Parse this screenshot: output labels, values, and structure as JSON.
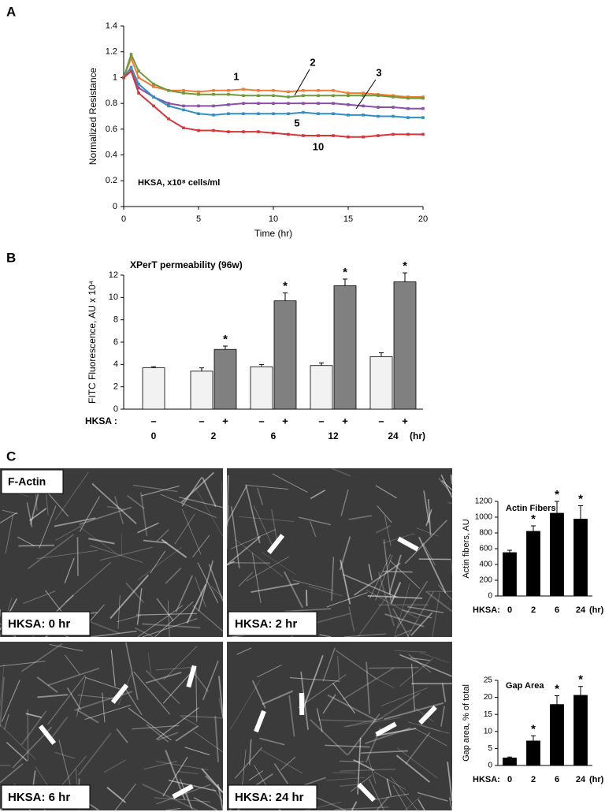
{
  "panel_labels": [
    "A",
    "B",
    "C"
  ],
  "stain_label": "F-Actin",
  "images": [
    {
      "label": "HKSA: 0 hr"
    },
    {
      "label": "HKSA: 2 hr"
    },
    {
      "label": "HKSA: 6 hr"
    },
    {
      "label": "HKSA: 24 hr"
    }
  ],
  "chart_data": [
    {
      "type": "line",
      "xlabel": "Time (hr)",
      "ylabel": "Normalized Resistance",
      "annotation": "HKSA, x10⁸ cells/ml",
      "x": [
        0,
        0.5,
        1,
        2,
        3,
        4,
        5,
        6,
        7,
        8,
        9,
        10,
        11,
        12,
        13,
        14,
        15,
        16,
        17,
        18,
        19,
        20
      ],
      "xlim": [
        0,
        20
      ],
      "xticks": [
        0,
        5,
        10,
        15,
        20
      ],
      "ylim": [
        0,
        1.4
      ],
      "yticks": [
        0,
        0.2,
        0.4,
        0.6,
        0.8,
        1,
        1.2,
        1.4
      ],
      "series": [
        {
          "name": "1",
          "color": "#f07c32",
          "values": [
            1.0,
            1.15,
            1.0,
            0.93,
            0.9,
            0.9,
            0.89,
            0.9,
            0.9,
            0.91,
            0.9,
            0.9,
            0.89,
            0.9,
            0.9,
            0.9,
            0.88,
            0.88,
            0.87,
            0.86,
            0.85,
            0.85
          ]
        },
        {
          "name": "2",
          "color": "#6f9a3c",
          "values": [
            1.0,
            1.18,
            1.05,
            0.95,
            0.9,
            0.88,
            0.87,
            0.87,
            0.87,
            0.86,
            0.86,
            0.86,
            0.85,
            0.86,
            0.86,
            0.86,
            0.86,
            0.86,
            0.86,
            0.85,
            0.84,
            0.84
          ]
        },
        {
          "name": "3",
          "color": "#8a4fa8",
          "values": [
            1.0,
            1.05,
            0.92,
            0.85,
            0.8,
            0.78,
            0.78,
            0.78,
            0.79,
            0.8,
            0.8,
            0.8,
            0.8,
            0.8,
            0.8,
            0.8,
            0.79,
            0.78,
            0.77,
            0.77,
            0.76,
            0.76
          ]
        },
        {
          "name": "5",
          "color": "#2f8fc4",
          "values": [
            1.0,
            1.08,
            0.95,
            0.85,
            0.78,
            0.75,
            0.72,
            0.71,
            0.72,
            0.72,
            0.72,
            0.72,
            0.72,
            0.73,
            0.72,
            0.72,
            0.71,
            0.71,
            0.7,
            0.7,
            0.69,
            0.69
          ]
        },
        {
          "name": "10",
          "color": "#d8343a",
          "values": [
            1.0,
            1.05,
            0.88,
            0.78,
            0.68,
            0.61,
            0.59,
            0.59,
            0.58,
            0.58,
            0.58,
            0.57,
            0.56,
            0.55,
            0.55,
            0.55,
            0.54,
            0.54,
            0.55,
            0.56,
            0.56,
            0.56
          ]
        }
      ]
    },
    {
      "type": "bar",
      "title": "XPerT permeability (96w)",
      "ylabel": "FITC Fluorescence, AU x 10⁴",
      "x_prefix": "HKSA :",
      "x_unit": "(hr)",
      "categories": [
        "0",
        "2",
        "6",
        "12",
        "24"
      ],
      "ylim": [
        0,
        12
      ],
      "yticks": [
        0,
        2,
        4,
        6,
        8,
        10,
        12
      ],
      "series": [
        {
          "name": "–",
          "color": "#f2f2f2",
          "values": [
            3.7,
            3.4,
            3.8,
            3.9,
            4.7
          ],
          "errors": [
            0.1,
            0.3,
            0.2,
            0.25,
            0.35
          ],
          "stars": [
            null,
            null,
            null,
            null,
            null
          ]
        },
        {
          "name": "+",
          "color": "#808080",
          "values": [
            null,
            5.35,
            9.7,
            11.05,
            11.4
          ],
          "errors": [
            null,
            0.3,
            0.7,
            0.6,
            0.8
          ],
          "stars": [
            null,
            "*",
            "*",
            "*",
            "*"
          ]
        }
      ]
    },
    {
      "type": "bar",
      "title": "Actin Fibers",
      "ylabel": "Actin fibers, AU",
      "x_prefix": "HKSA:",
      "x_unit": "(hr)",
      "categories": [
        "0",
        "2",
        "6",
        "24"
      ],
      "ylim": [
        0,
        1200
      ],
      "yticks": [
        0,
        200,
        400,
        600,
        800,
        1000,
        1200
      ],
      "series": [
        {
          "color": "#000000",
          "values": [
            550,
            820,
            1050,
            975
          ],
          "errors": [
            30,
            70,
            150,
            170
          ],
          "stars": [
            null,
            "*",
            "*",
            "*"
          ]
        }
      ]
    },
    {
      "type": "bar",
      "title": "Gap Area",
      "ylabel": "Gap area, % of total",
      "x_prefix": "HKSA:",
      "x_unit": "(hr)",
      "categories": [
        "0",
        "2",
        "6",
        "24"
      ],
      "ylim": [
        0,
        25
      ],
      "yticks": [
        0,
        5,
        10,
        15,
        20,
        25
      ],
      "series": [
        {
          "color": "#000000",
          "values": [
            2.2,
            7.2,
            17.9,
            20.6
          ],
          "errors": [
            0.3,
            1.5,
            2.6,
            2.6
          ],
          "stars": [
            null,
            "*",
            "*",
            "*"
          ]
        }
      ]
    }
  ]
}
